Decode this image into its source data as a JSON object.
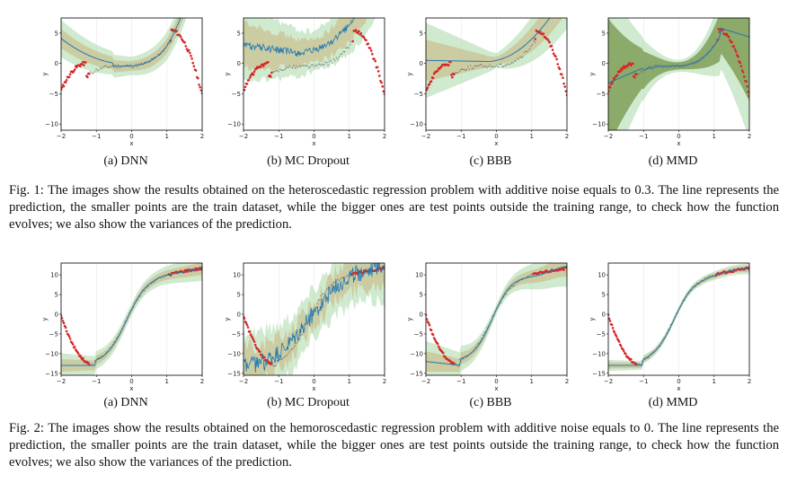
{
  "figures": [
    {
      "caption_label": "Fig. 1:",
      "caption_text": "The images show the results obtained on the heteroscedastic regression problem with additive noise equals to 0.3. The line represents the prediction, the smaller points are the train dataset, while the bigger ones are test points outside the training range, to check how the function evolves; we also show the variances of the prediction.",
      "panels": [
        {
          "label": "(a) DNN"
        },
        {
          "label": "(b) MC Dropout"
        },
        {
          "label": "(c) BBB"
        },
        {
          "label": "(d) MMD"
        }
      ]
    },
    {
      "caption_label": "Fig. 2:",
      "caption_text": "The images show the results obtained on the hemoroscedastic regression problem with additive noise equals to 0. The line represents the prediction, the smaller points are the train dataset, while the bigger ones are test points outside the training range, to check how the function evolves; we also show the variances of the prediction.",
      "panels": [
        {
          "label": "(a) DNN"
        },
        {
          "label": "(b) MC Dropout"
        },
        {
          "label": "(c) BBB"
        },
        {
          "label": "(d) MMD"
        }
      ]
    }
  ],
  "chart_data": [
    {
      "type": "line",
      "title": "",
      "xlabel": "x",
      "ylabel": "y",
      "xlim": [
        -2,
        2
      ],
      "ylim": [
        -11,
        7.5
      ],
      "xticks": [
        "−2",
        "−1",
        "0",
        "1",
        "2"
      ],
      "yticks": [
        "5",
        "0",
        "−5",
        "−10"
      ],
      "series": [
        {
          "values": "prediction line with uncertainty bands; train points (small) and test points (large, red)"
        }
      ]
    },
    {
      "type": "line",
      "title": "",
      "xlabel": "x",
      "ylabel": "y",
      "xlim": [
        -2,
        2
      ],
      "ylim": [
        -11,
        7.5
      ],
      "xticks": [
        "−2",
        "−1",
        "0",
        "1",
        "2"
      ],
      "yticks": [
        "5",
        "0",
        "−5",
        "−10"
      ]
    },
    {
      "type": "line",
      "title": "",
      "xlabel": "x",
      "ylabel": "y",
      "xlim": [
        -2,
        2
      ],
      "ylim": [
        -11,
        7.5
      ],
      "xticks": [
        "−2",
        "−1",
        "0",
        "1",
        "2"
      ],
      "yticks": [
        "5",
        "0",
        "−5",
        "−10"
      ]
    },
    {
      "type": "line",
      "title": "",
      "xlabel": "x",
      "ylabel": "y",
      "xlim": [
        -2,
        2
      ],
      "ylim": [
        -11,
        7.5
      ],
      "xticks": [
        "−2",
        "−1",
        "0",
        "1",
        "2"
      ],
      "yticks": [
        "5",
        "0",
        "−5",
        "−10"
      ]
    },
    {
      "type": "line",
      "title": "",
      "xlabel": "x",
      "ylabel": "y",
      "xlim": [
        -2,
        2
      ],
      "ylim": [
        -15.5,
        13
      ],
      "xticks": [
        "−2",
        "−1",
        "0",
        "1",
        "2"
      ],
      "yticks": [
        "10",
        "5",
        "0",
        "−5",
        "−10",
        "−15"
      ]
    },
    {
      "type": "line",
      "title": "",
      "xlabel": "x",
      "ylabel": "y",
      "xlim": [
        -2,
        2
      ],
      "ylim": [
        -15.5,
        13
      ],
      "xticks": [
        "−2",
        "−1",
        "0",
        "1",
        "2"
      ],
      "yticks": [
        "10",
        "5",
        "0",
        "−5",
        "−10",
        "−15"
      ]
    },
    {
      "type": "line",
      "title": "",
      "xlabel": "x",
      "ylabel": "y",
      "xlim": [
        -2,
        2
      ],
      "ylim": [
        -15.5,
        13
      ],
      "xticks": [
        "−2",
        "−1",
        "0",
        "1",
        "2"
      ],
      "yticks": [
        "10",
        "5",
        "0",
        "−5",
        "−10",
        "−15"
      ]
    },
    {
      "type": "line",
      "title": "",
      "xlabel": "x",
      "ylabel": "y",
      "xlim": [
        -2,
        2
      ],
      "ylim": [
        -15.5,
        13
      ],
      "xticks": [
        "−2",
        "−1",
        "0",
        "1",
        "2"
      ],
      "yticks": [
        "10",
        "5",
        "0",
        "−5",
        "−10",
        "−15"
      ]
    }
  ],
  "colors": {
    "line": "#1f77b4",
    "points": "#d62728",
    "band_inner": "#c7a86a",
    "band_outer": "#a8d8a8",
    "band_mmd": "#6f8f3f"
  }
}
